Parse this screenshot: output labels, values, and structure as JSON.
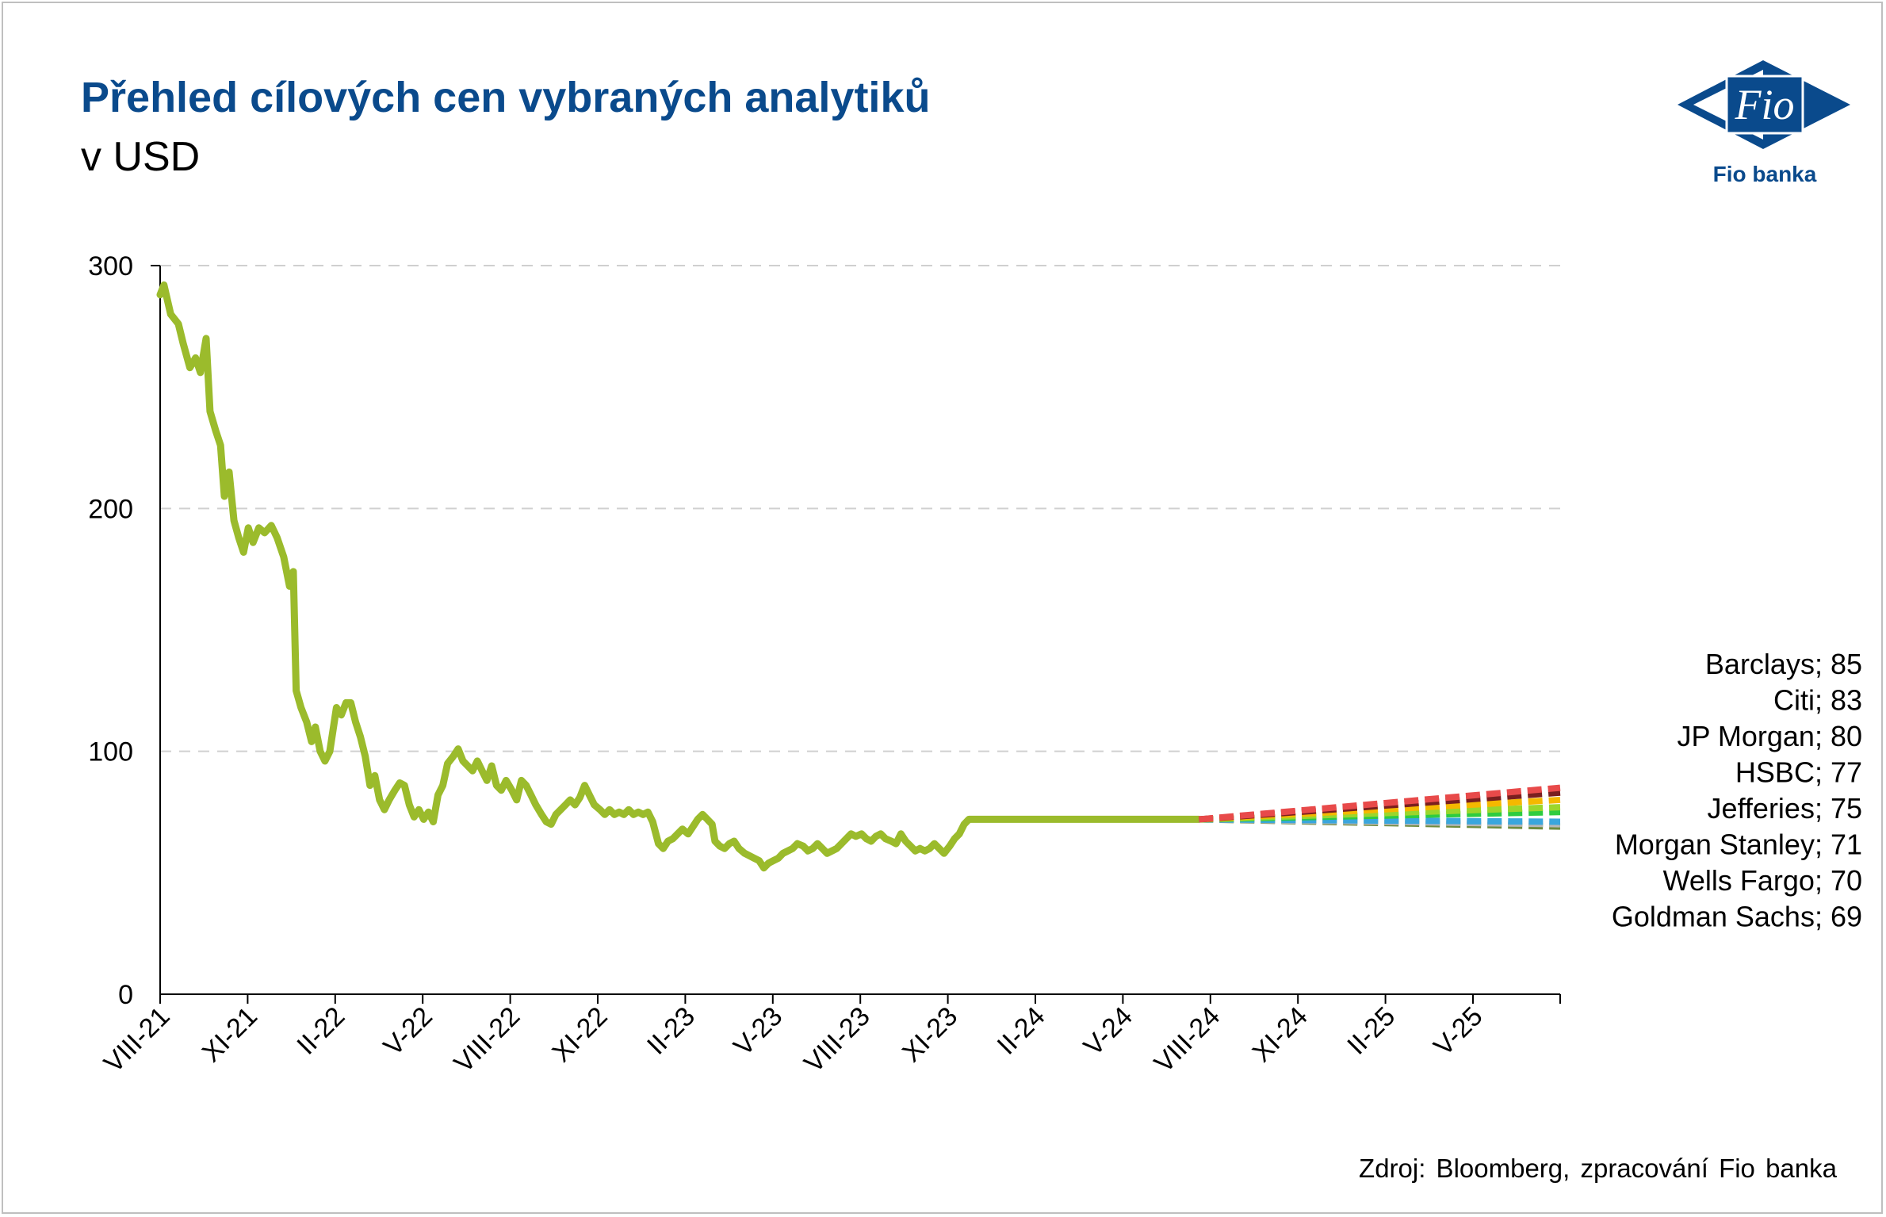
{
  "header": {
    "title": "Přehled cílových cen vybraných analytiků",
    "subtitle": "v USD"
  },
  "logo": {
    "mark": "Fio",
    "name": "Fio banka",
    "icon": "fio-banka-logo-icon"
  },
  "source": "Zdroj: Bloomberg, zpracování Fio banka",
  "colors": {
    "title": "#0a4a8c",
    "price_line": "#9bbb2c",
    "gridline": "#d0d0d0"
  },
  "chart_data": {
    "type": "line",
    "title": "Přehled cílových cen vybraných analytiků",
    "subtitle": "v USD",
    "ylim": [
      0,
      300
    ],
    "yticks": [
      0,
      100,
      200,
      300
    ],
    "grid": "horizontal dashed",
    "xlim": [
      "2021-08-01",
      "2025-08-01"
    ],
    "xticks": [
      "VIII-21",
      "XI-21",
      "II-22",
      "V-22",
      "VIII-22",
      "XI-22",
      "II-23",
      "V-23",
      "VIII-23",
      "XI-23",
      "II-24",
      "V-24",
      "VIII-24",
      "XI-24",
      "II-25",
      "V-25"
    ],
    "price_series": {
      "color": "#9bbb2c",
      "points": [
        [
          "2021-08-01",
          288
        ],
        [
          "2021-08-05",
          292
        ],
        [
          "2021-08-12",
          280
        ],
        [
          "2021-08-20",
          276
        ],
        [
          "2021-08-25",
          268
        ],
        [
          "2021-09-01",
          258
        ],
        [
          "2021-09-07",
          262
        ],
        [
          "2021-09-12",
          256
        ],
        [
          "2021-09-18",
          270
        ],
        [
          "2021-09-22",
          240
        ],
        [
          "2021-09-28",
          232
        ],
        [
          "2021-10-03",
          226
        ],
        [
          "2021-10-07",
          205
        ],
        [
          "2021-10-12",
          215
        ],
        [
          "2021-10-17",
          195
        ],
        [
          "2021-10-22",
          188
        ],
        [
          "2021-10-27",
          182
        ],
        [
          "2021-11-01",
          192
        ],
        [
          "2021-11-06",
          186
        ],
        [
          "2021-11-12",
          192
        ],
        [
          "2021-11-18",
          190
        ],
        [
          "2021-11-25",
          193
        ],
        [
          "2021-12-01",
          188
        ],
        [
          "2021-12-08",
          180
        ],
        [
          "2021-12-14",
          168
        ],
        [
          "2021-12-18",
          174
        ],
        [
          "2021-12-21",
          125
        ],
        [
          "2021-12-26",
          118
        ],
        [
          "2022-01-01",
          112
        ],
        [
          "2022-01-06",
          104
        ],
        [
          "2022-01-10",
          110
        ],
        [
          "2022-01-15",
          100
        ],
        [
          "2022-01-20",
          96
        ],
        [
          "2022-01-25",
          100
        ],
        [
          "2022-02-01",
          118
        ],
        [
          "2022-02-06",
          115
        ],
        [
          "2022-02-11",
          120
        ],
        [
          "2022-02-16",
          120
        ],
        [
          "2022-02-21",
          112
        ],
        [
          "2022-02-26",
          106
        ],
        [
          "2022-03-03",
          98
        ],
        [
          "2022-03-08",
          86
        ],
        [
          "2022-03-13",
          90
        ],
        [
          "2022-03-18",
          80
        ],
        [
          "2022-03-23",
          76
        ],
        [
          "2022-03-28",
          80
        ],
        [
          "2022-04-03",
          84
        ],
        [
          "2022-04-08",
          87
        ],
        [
          "2022-04-13",
          86
        ],
        [
          "2022-04-18",
          78
        ],
        [
          "2022-04-23",
          73
        ],
        [
          "2022-04-28",
          76
        ],
        [
          "2022-05-03",
          72
        ],
        [
          "2022-05-08",
          75
        ],
        [
          "2022-05-13",
          71
        ],
        [
          "2022-05-18",
          82
        ],
        [
          "2022-05-23",
          86
        ],
        [
          "2022-05-28",
          95
        ],
        [
          "2022-06-03",
          98
        ],
        [
          "2022-06-08",
          101
        ],
        [
          "2022-06-13",
          96
        ],
        [
          "2022-06-18",
          94
        ],
        [
          "2022-06-23",
          92
        ],
        [
          "2022-06-28",
          96
        ],
        [
          "2022-07-03",
          92
        ],
        [
          "2022-07-08",
          88
        ],
        [
          "2022-07-13",
          94
        ],
        [
          "2022-07-18",
          86
        ],
        [
          "2022-07-23",
          84
        ],
        [
          "2022-07-28",
          88
        ],
        [
          "2022-08-03",
          84
        ],
        [
          "2022-08-08",
          80
        ],
        [
          "2022-08-13",
          88
        ],
        [
          "2022-08-18",
          86
        ],
        [
          "2022-08-23",
          82
        ],
        [
          "2022-08-28",
          78
        ],
        [
          "2022-09-03",
          74
        ],
        [
          "2022-09-08",
          71
        ],
        [
          "2022-09-13",
          70
        ],
        [
          "2022-09-18",
          74
        ],
        [
          "2022-09-23",
          76
        ],
        [
          "2022-09-28",
          78
        ],
        [
          "2022-10-03",
          80
        ],
        [
          "2022-10-08",
          78
        ],
        [
          "2022-10-13",
          81
        ],
        [
          "2022-10-18",
          86
        ],
        [
          "2022-10-23",
          82
        ],
        [
          "2022-10-28",
          78
        ],
        [
          "2022-11-03",
          76
        ],
        [
          "2022-11-08",
          74
        ],
        [
          "2022-11-13",
          76
        ],
        [
          "2022-11-18",
          74
        ],
        [
          "2022-11-23",
          75
        ],
        [
          "2022-11-28",
          74
        ],
        [
          "2022-12-03",
          76
        ],
        [
          "2022-12-08",
          74
        ],
        [
          "2022-12-13",
          75
        ],
        [
          "2022-12-18",
          74
        ],
        [
          "2022-12-23",
          75
        ],
        [
          "2022-12-28",
          71
        ],
        [
          "2023-01-03",
          62
        ],
        [
          "2023-01-08",
          60
        ],
        [
          "2023-01-13",
          63
        ],
        [
          "2023-01-18",
          64
        ],
        [
          "2023-01-23",
          66
        ],
        [
          "2023-01-28",
          68
        ],
        [
          "2023-02-03",
          66
        ],
        [
          "2023-02-08",
          69
        ],
        [
          "2023-02-13",
          72
        ],
        [
          "2023-02-18",
          74
        ],
        [
          "2023-02-23",
          72
        ],
        [
          "2023-02-28",
          70
        ],
        [
          "2023-03-03",
          63
        ],
        [
          "2023-03-08",
          61
        ],
        [
          "2023-03-13",
          60
        ],
        [
          "2023-03-18",
          62
        ],
        [
          "2023-03-23",
          63
        ],
        [
          "2023-03-28",
          60
        ],
        [
          "2023-04-03",
          58
        ],
        [
          "2023-04-08",
          57
        ],
        [
          "2023-04-13",
          56
        ],
        [
          "2023-04-18",
          55
        ],
        [
          "2023-04-23",
          52
        ],
        [
          "2023-04-28",
          54
        ],
        [
          "2023-05-03",
          55
        ],
        [
          "2023-05-08",
          56
        ],
        [
          "2023-05-13",
          58
        ],
        [
          "2023-05-18",
          59
        ],
        [
          "2023-05-23",
          60
        ],
        [
          "2023-05-28",
          62
        ],
        [
          "2023-06-03",
          61
        ],
        [
          "2023-06-08",
          59
        ],
        [
          "2023-06-13",
          60
        ],
        [
          "2023-06-18",
          62
        ],
        [
          "2023-06-23",
          60
        ],
        [
          "2023-06-28",
          58
        ],
        [
          "2023-07-03",
          59
        ],
        [
          "2023-07-08",
          60
        ],
        [
          "2023-07-13",
          62
        ],
        [
          "2023-07-18",
          64
        ],
        [
          "2023-07-23",
          66
        ],
        [
          "2023-07-28",
          65
        ],
        [
          "2023-08-03",
          66
        ],
        [
          "2023-08-08",
          64
        ],
        [
          "2023-08-13",
          63
        ],
        [
          "2023-08-18",
          65
        ],
        [
          "2023-08-23",
          66
        ],
        [
          "2023-08-28",
          64
        ],
        [
          "2023-09-03",
          63
        ],
        [
          "2023-09-08",
          62
        ],
        [
          "2023-09-13",
          66
        ],
        [
          "2023-09-18",
          63
        ],
        [
          "2023-09-23",
          61
        ],
        [
          "2023-09-28",
          59
        ],
        [
          "2023-10-03",
          60
        ],
        [
          "2023-10-08",
          59
        ],
        [
          "2023-10-13",
          60
        ],
        [
          "2023-10-18",
          62
        ],
        [
          "2023-10-23",
          60
        ],
        [
          "2023-10-28",
          58
        ],
        [
          "2023-11-03",
          61
        ],
        [
          "2023-11-08",
          64
        ],
        [
          "2023-11-13",
          66
        ],
        [
          "2023-11-18",
          70
        ],
        [
          "2023-11-23",
          72
        ]
      ],
      "note_units": "date, USD"
    },
    "analyst_series": [
      {
        "name": "Barclays",
        "value": 85,
        "color": "#e84a4a",
        "label": "Barclays; 85"
      },
      {
        "name": "Citi",
        "value": 83,
        "color": "#7a1f1f",
        "label": "Citi; 83"
      },
      {
        "name": "JP Morgan",
        "value": 80,
        "color": "#f5b800",
        "label": "JP Morgan; 80"
      },
      {
        "name": "HSBC",
        "value": 77,
        "color": "#9bd62c",
        "label": "HSBC; 77"
      },
      {
        "name": "Jefferies",
        "value": 75,
        "color": "#2ecc40",
        "label": "Jefferies; 75"
      },
      {
        "name": "Morgan Stanley",
        "value": 71,
        "color": "#3aa6dd",
        "label": "Morgan Stanley; 71"
      },
      {
        "name": "Wells Fargo",
        "value": 70,
        "color": "#b7b7b7",
        "label": "Wells Fargo; 70"
      },
      {
        "name": "Goldman Sachs",
        "value": 69,
        "color": "#6e8b3d",
        "label": "Goldman Sachs; 69"
      }
    ],
    "forecast_start": [
      "2024-07-20",
      72
    ],
    "forecast_end_date": "2025-08-01"
  }
}
